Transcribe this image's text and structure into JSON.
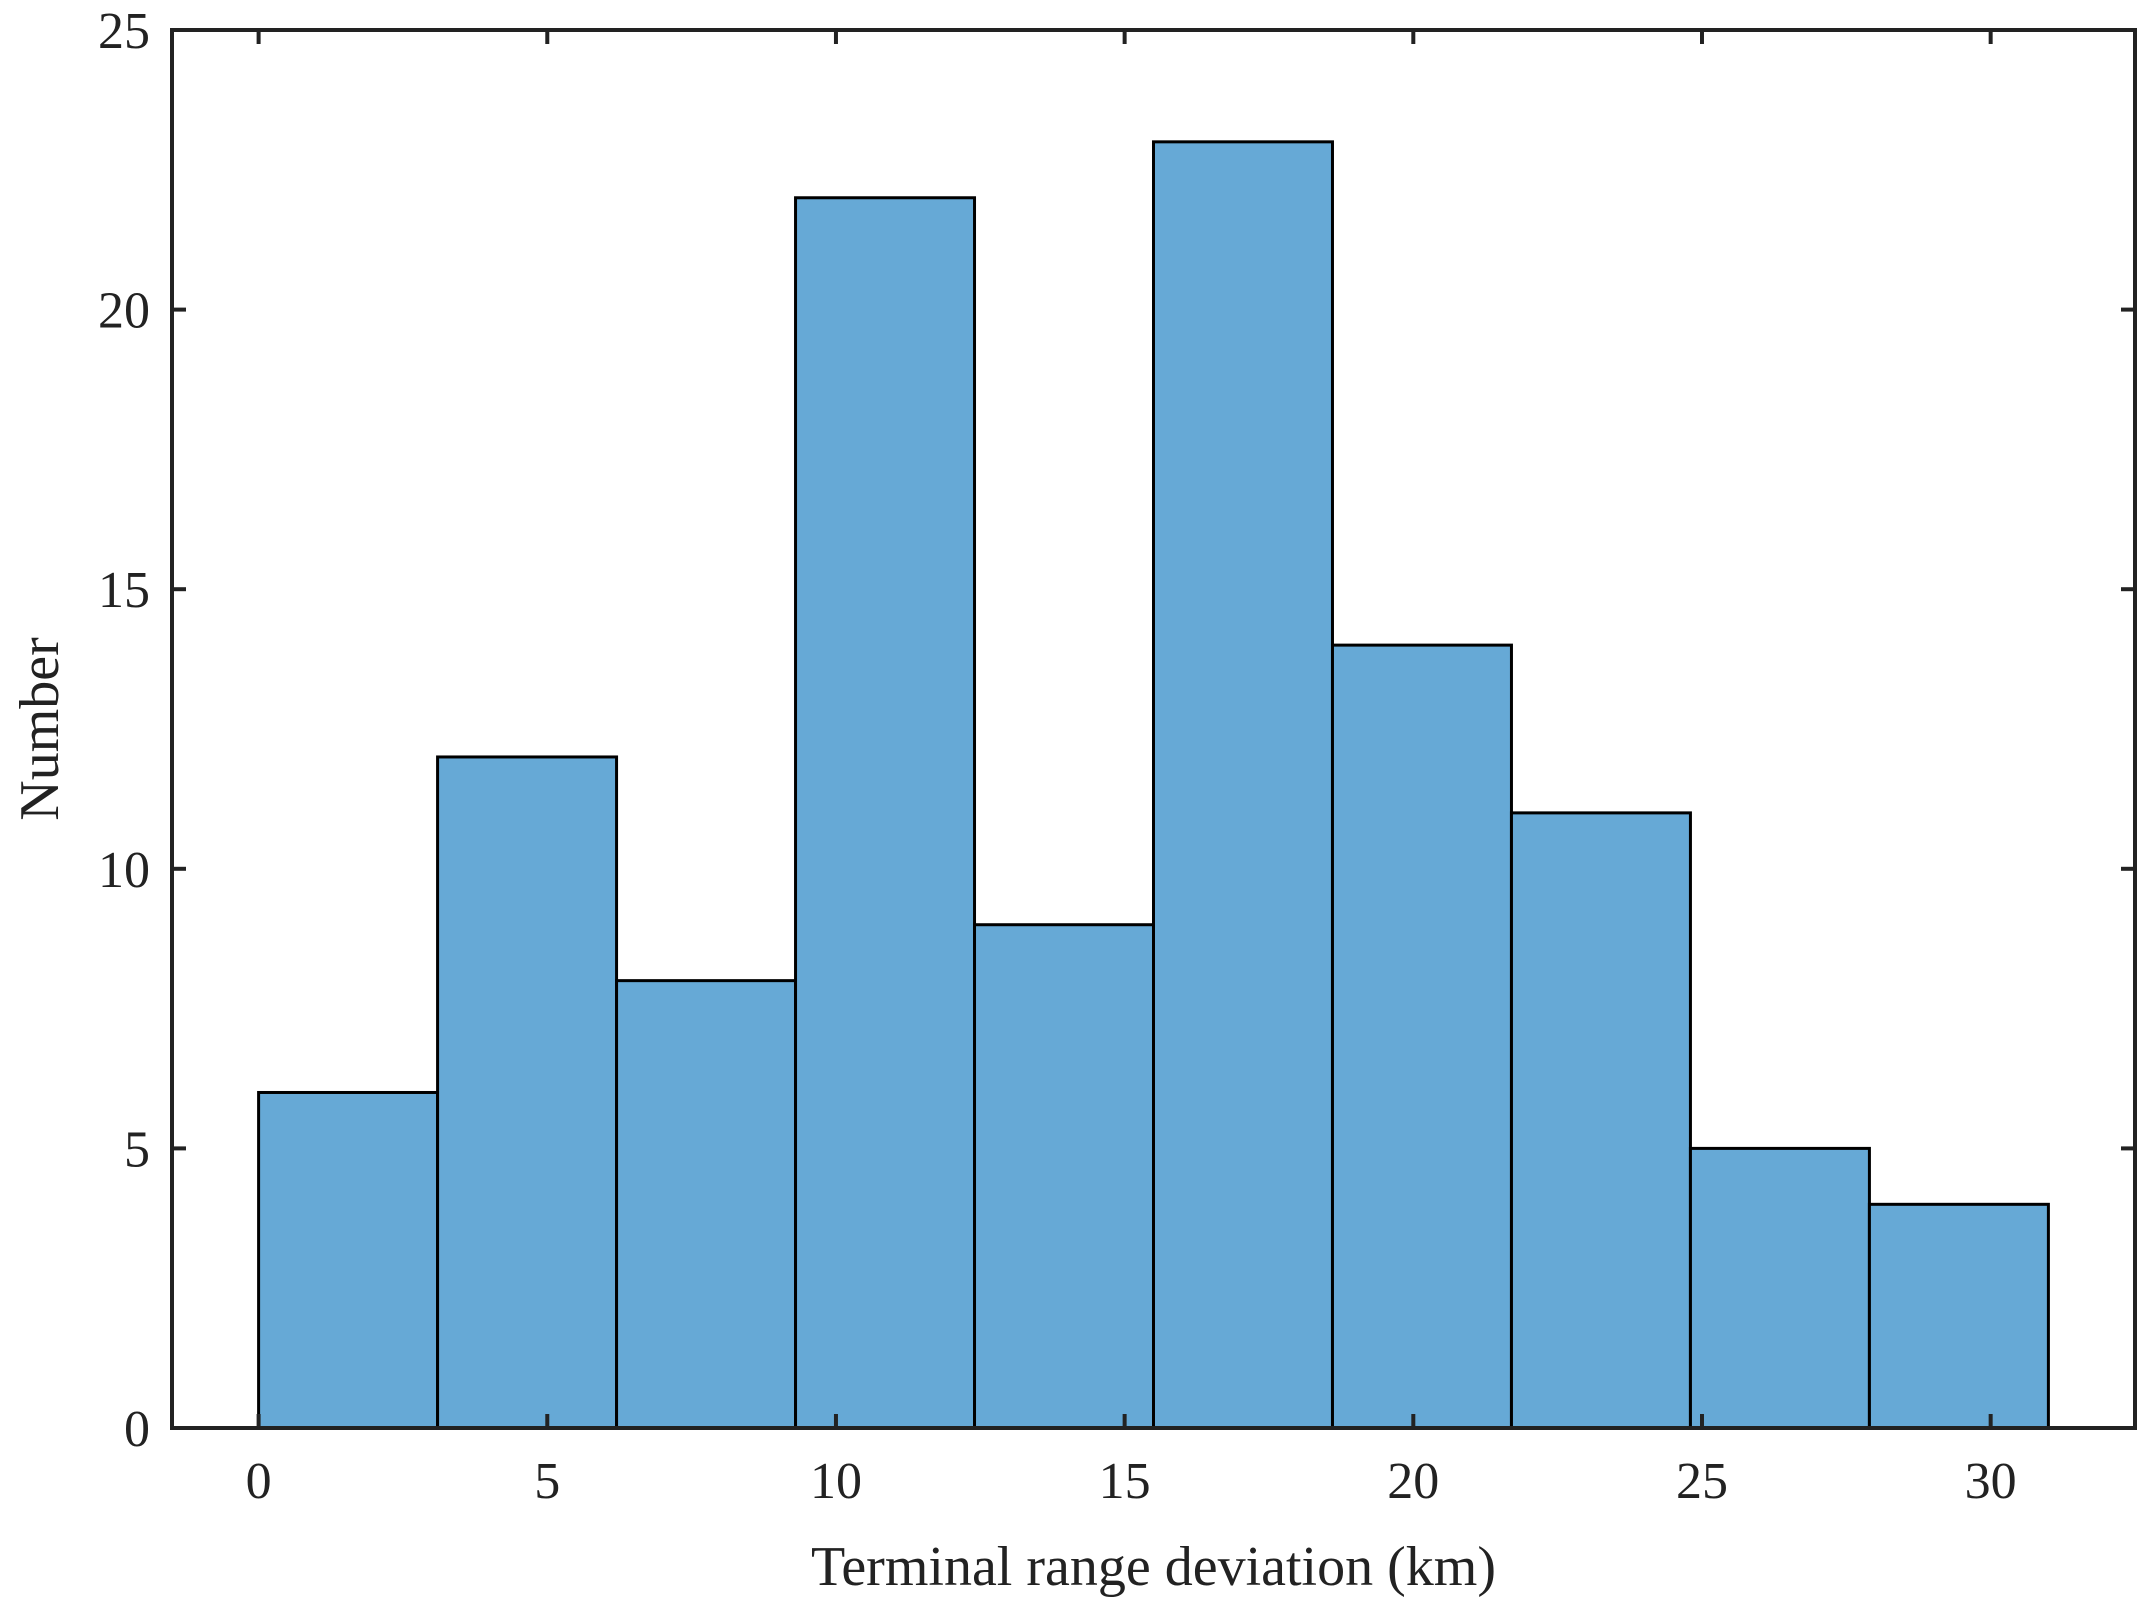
{
  "chart_data": {
    "type": "histogram",
    "title": "",
    "xlabel": "Terminal range deviation (km)",
    "ylabel": "Number",
    "xlim": [
      -1.5,
      32.5
    ],
    "ylim": [
      0,
      25
    ],
    "xticks": [
      0,
      5,
      10,
      15,
      20,
      25,
      30
    ],
    "yticks": [
      0,
      5,
      10,
      15,
      20,
      25
    ],
    "bin_edges": [
      0.0,
      3.1,
      6.2,
      9.3,
      12.4,
      15.5,
      18.6,
      21.7,
      24.8,
      27.9,
      31.0
    ],
    "counts": [
      6,
      12,
      8,
      22,
      9,
      23,
      14,
      11,
      5,
      4
    ],
    "bar_color": "#66a9d6",
    "edge_color": "#000000",
    "grid": false,
    "legend": null
  }
}
